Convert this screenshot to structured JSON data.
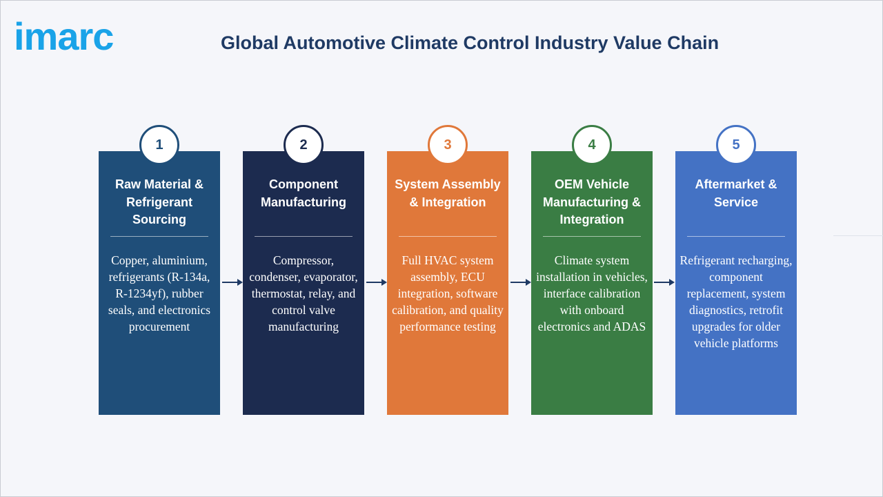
{
  "logo": {
    "text": "imarc",
    "color": "#1aa3e8"
  },
  "title": "Global Automotive Climate Control Industry Value Chain",
  "colors": {
    "title": "#1f3a64",
    "arrow": "#1f3a64",
    "background": "#f5f6fa"
  },
  "steps": [
    {
      "number": "1",
      "heading": "Raw Material & Refrigerant Sourcing",
      "body": "Copper, aluminium, refrigerants (R-134a, R-1234yf), rubber seals, and electronics procurement",
      "color": "#1f4e79"
    },
    {
      "number": "2",
      "heading": "Component Manufacturing",
      "body": "Compressor, condenser, evaporator, thermostat, relay, and control valve manufacturing",
      "color": "#1c2b4f"
    },
    {
      "number": "3",
      "heading": "System Assembly & Integration",
      "body": "Full HVAC system assembly, ECU integration, software calibration, and quality performance testing",
      "color": "#e0783a"
    },
    {
      "number": "4",
      "heading": "OEM Vehicle Manufacturing & Integration",
      "body": "Climate system installation in vehicles, interface calibration with onboard electronics and ADAS",
      "color": "#3a7d44"
    },
    {
      "number": "5",
      "heading": "Aftermarket & Service",
      "body": "Refrigerant recharging, component replacement, system diagnostics, retrofit upgrades for older vehicle platforms",
      "color": "#4472c4"
    }
  ]
}
